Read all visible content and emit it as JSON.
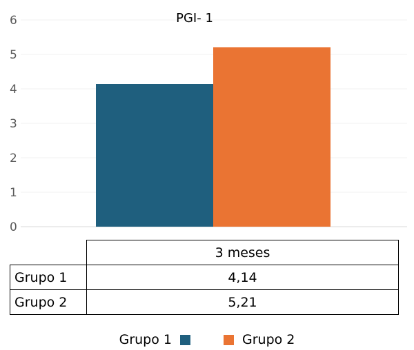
{
  "chart_data": {
    "type": "bar",
    "title": "PGI- 1",
    "categories": [
      "3 meses"
    ],
    "series": [
      {
        "name": "Grupo 1",
        "values": [
          4.14
        ],
        "color": "#1f5f7e",
        "label": "4,14"
      },
      {
        "name": "Grupo 2",
        "values": [
          5.21
        ],
        "color": "#ea7433",
        "label": "5,21"
      }
    ],
    "ylim": [
      0,
      6
    ],
    "yticks": [
      "0",
      "1",
      "2",
      "3",
      "4",
      "5",
      "6"
    ],
    "grid": true,
    "legend_position": "bottom"
  }
}
